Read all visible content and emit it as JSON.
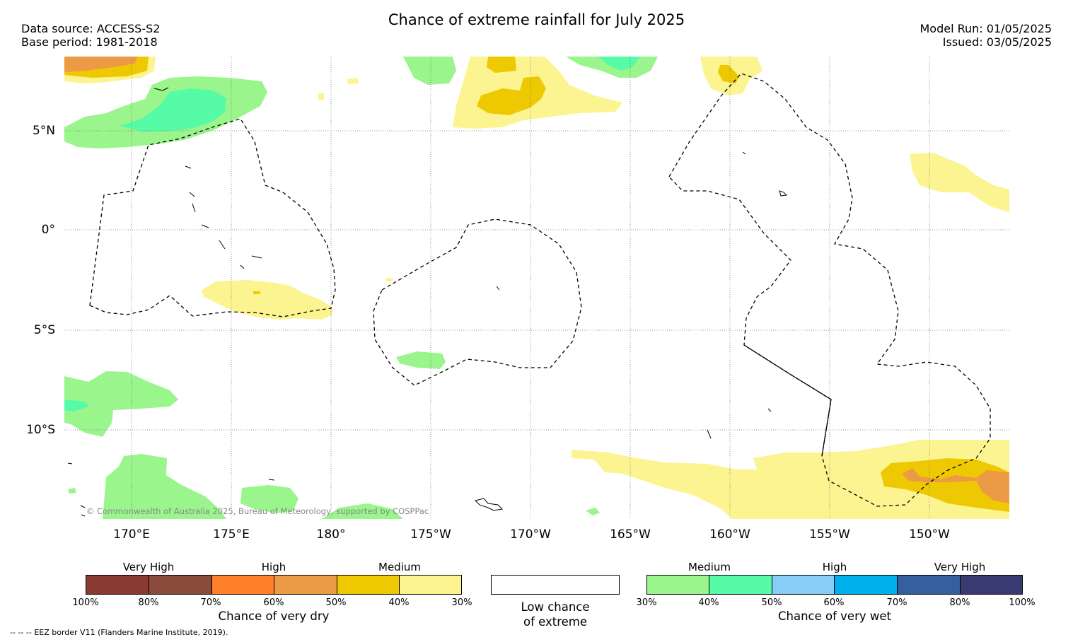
{
  "header": {
    "title": "Chance of extreme rainfall for July 2025",
    "data_source": "Data source: ACCESS-S2",
    "base_period": "Base period: 1981-2018",
    "model_run": "Model Run: 01/05/2025",
    "issued": "Issued: 03/05/2025"
  },
  "map": {
    "lat_labels": [
      "5°N",
      "0°",
      "5°S",
      "10°S"
    ],
    "lon_labels": [
      "170°E",
      "175°E",
      "180°",
      "175°W",
      "170°W",
      "165°W",
      "160°W",
      "155°W",
      "150°W"
    ],
    "copyright": "© Commonwealth of Australia 2025, Bureau of Meteorology, supported by COSPPac"
  },
  "legend": {
    "dry": {
      "heads": [
        "Very High",
        "High",
        "Medium"
      ],
      "ticks": [
        "100%",
        "80%",
        "70%",
        "60%",
        "50%",
        "40%",
        "30%"
      ],
      "colors": [
        "#8b3a32",
        "#8b4a3a",
        "#ff7f2a",
        "#ec9a45",
        "#eec800",
        "#fcf490"
      ],
      "title": "Chance of very dry"
    },
    "low": {
      "title_line1": "Low chance",
      "title_line2": "of extreme"
    },
    "wet": {
      "heads": [
        "Medium",
        "High",
        "Very High"
      ],
      "ticks": [
        "30%",
        "40%",
        "50%",
        "60%",
        "70%",
        "80%",
        "100%"
      ],
      "colors": [
        "#99f58c",
        "#55fba6",
        "#88ccfa",
        "#00b0ea",
        "#355f9d",
        "#3a3a72"
      ],
      "title": "Chance of very wet"
    }
  },
  "footer": {
    "eez_note": "--  --  -- EEZ border V11 (Flanders Marine Institute, 2019)."
  }
}
